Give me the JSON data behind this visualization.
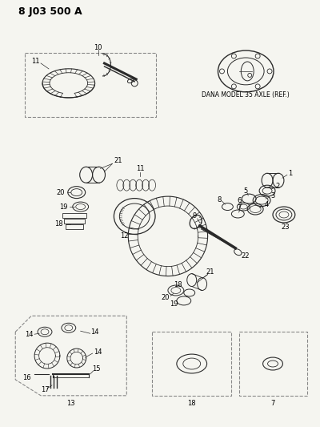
{
  "title": "8 J03 500 A",
  "background_color": "#f5f5f0",
  "dana_label": "DANA MODEL 35 AXLE (REF.)",
  "fig_width": 4.0,
  "fig_height": 5.33,
  "dpi": 100,
  "line_color": "#2a2a2a",
  "box_color": "#888888"
}
